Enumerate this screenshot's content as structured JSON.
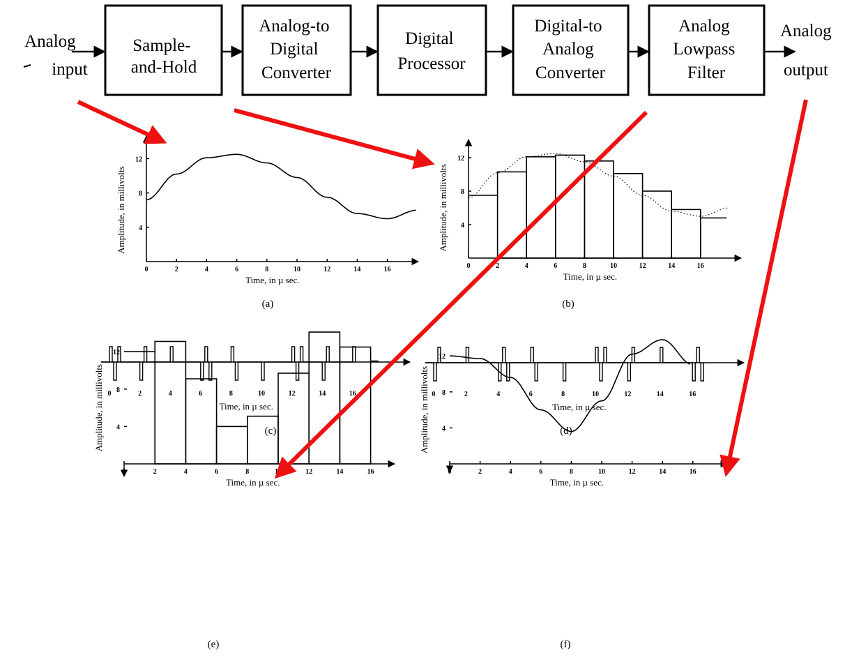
{
  "diagram": {
    "input_label": [
      "Analog",
      "input"
    ],
    "output_label": [
      "Analog",
      "output"
    ],
    "blocks": [
      {
        "lines": [
          "Sample-",
          "and-Hold"
        ]
      },
      {
        "lines": [
          "Analog-to",
          "Digital",
          "Converter"
        ]
      },
      {
        "lines": [
          "Digital",
          "Processor"
        ]
      },
      {
        "lines": [
          "Digital-to",
          "Analog",
          "Converter"
        ]
      },
      {
        "lines": [
          "Analog",
          "Lowpass",
          "Filter"
        ]
      }
    ]
  },
  "plots": {
    "time_label": "Time, in µ sec.",
    "amp_label": "Amplitude, in millivolts",
    "x_ticks": [
      "0",
      "2",
      "4",
      "6",
      "8",
      "10",
      "12",
      "14",
      "16"
    ],
    "y_ticks": [
      "4",
      "8",
      "12"
    ],
    "captions": [
      "(a)",
      "(b)",
      "(c)",
      "(d)",
      "(e)",
      "(f)"
    ],
    "b_samples": [
      7.5,
      10.3,
      12.1,
      12.3,
      11.6,
      10.1,
      8.0,
      5.8,
      4.8
    ],
    "e_samples": [
      12.0,
      13.1,
      9.1,
      4.0,
      5.1,
      9.7,
      14.1,
      12.5,
      11.0
    ]
  },
  "colors": {
    "arrow": "#ee1111",
    "ink": "#000000"
  }
}
